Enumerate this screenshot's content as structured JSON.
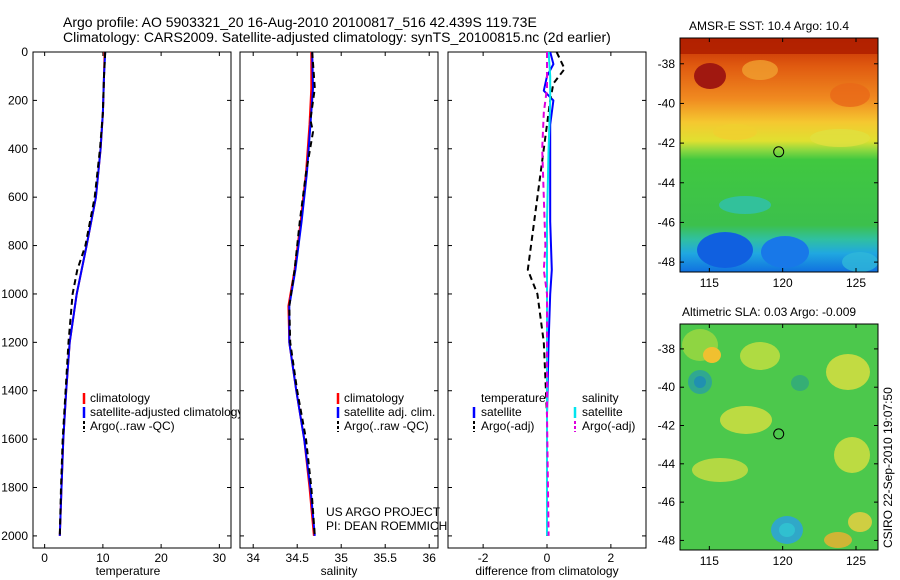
{
  "header": {
    "line1": "Argo profile: AO 5903321_20 16-Aug-2010 20100817_516 42.439S 119.73E",
    "line2": "Climatology: CARS2009. Satellite-adjusted climatology: synTS_20100815.nc (2d earlier)"
  },
  "colors": {
    "climatology": "#ff0000",
    "satellite": "#0000ff",
    "argo": "#000000",
    "salinity_satellite": "#00e5ee",
    "salinity_argo": "#dd00dd"
  },
  "chart_data": [
    {
      "id": "temperature",
      "type": "line",
      "xlabel": "temperature",
      "xlim": [
        -2,
        32
      ],
      "xticks": [
        0,
        10,
        20,
        30
      ],
      "ylim": [
        2050,
        0
      ],
      "yticks": [
        0,
        200,
        400,
        600,
        800,
        1000,
        1200,
        1400,
        1600,
        1800,
        2000
      ],
      "legend": [
        "climatology",
        "satellite-adjusted climatology",
        "Argo(..raw -QC)"
      ],
      "series": [
        {
          "name": "climatology",
          "color": "#ff0000",
          "dash": "",
          "points": [
            [
              10.3,
              0
            ],
            [
              10.2,
              100
            ],
            [
              10.0,
              250
            ],
            [
              9.6,
              400
            ],
            [
              8.8,
              600
            ],
            [
              7.2,
              800
            ],
            [
              5.5,
              1000
            ],
            [
              4.3,
              1200
            ],
            [
              3.7,
              1400
            ],
            [
              3.2,
              1600
            ],
            [
              2.9,
              1800
            ],
            [
              2.6,
              2000
            ]
          ]
        },
        {
          "name": "satellite-adjusted climatology",
          "color": "#0000ff",
          "dash": "",
          "points": [
            [
              10.4,
              0
            ],
            [
              10.2,
              100
            ],
            [
              10.0,
              250
            ],
            [
              9.6,
              400
            ],
            [
              8.8,
              600
            ],
            [
              7.2,
              800
            ],
            [
              5.5,
              1000
            ],
            [
              4.3,
              1200
            ],
            [
              3.7,
              1400
            ],
            [
              3.2,
              1600
            ],
            [
              2.9,
              1800
            ],
            [
              2.6,
              2000
            ]
          ]
        },
        {
          "name": "Argo(..raw -QC)",
          "color": "#000000",
          "dash": "6,4",
          "points": [
            [
              10.4,
              0
            ],
            [
              10.2,
              100
            ],
            [
              10.0,
              250
            ],
            [
              9.5,
              400
            ],
            [
              8.6,
              600
            ],
            [
              7.0,
              800
            ],
            [
              5.6,
              900
            ],
            [
              4.8,
              1000
            ],
            [
              4.1,
              1200
            ],
            [
              3.6,
              1400
            ],
            [
              3.1,
              1600
            ],
            [
              2.8,
              1800
            ],
            [
              2.6,
              2000
            ]
          ]
        }
      ]
    },
    {
      "id": "salinity",
      "type": "line",
      "xlabel": "salinity",
      "xlim": [
        33.85,
        36.1
      ],
      "xticks": [
        34,
        34.5,
        35,
        35.5,
        36
      ],
      "ylim": [
        2050,
        0
      ],
      "legend": [
        "climatology",
        "satellite adj. clim.",
        "Argo(..raw -QC)"
      ],
      "annotation": [
        "US ARGO PROJECT",
        "PI: DEAN ROEMMICH"
      ],
      "series": [
        {
          "name": "climatology",
          "color": "#ff0000",
          "dash": "",
          "points": [
            [
              34.66,
              0
            ],
            [
              34.66,
              150
            ],
            [
              34.64,
              300
            ],
            [
              34.6,
              500
            ],
            [
              34.54,
              700
            ],
            [
              34.47,
              900
            ],
            [
              34.4,
              1050
            ],
            [
              34.41,
              1200
            ],
            [
              34.49,
              1400
            ],
            [
              34.58,
              1600
            ],
            [
              34.64,
              1800
            ],
            [
              34.69,
              2000
            ]
          ]
        },
        {
          "name": "satellite adj. clim.",
          "color": "#0000ff",
          "dash": "",
          "points": [
            [
              34.67,
              0
            ],
            [
              34.68,
              150
            ],
            [
              34.65,
              300
            ],
            [
              34.61,
              500
            ],
            [
              34.55,
              700
            ],
            [
              34.48,
              900
            ],
            [
              34.41,
              1050
            ],
            [
              34.41,
              1200
            ],
            [
              34.49,
              1400
            ],
            [
              34.58,
              1600
            ],
            [
              34.65,
              1800
            ],
            [
              34.7,
              2000
            ]
          ]
        },
        {
          "name": "Argo(..raw -QC)",
          "color": "#000000",
          "dash": "6,4",
          "points": [
            [
              34.67,
              0
            ],
            [
              34.7,
              150
            ],
            [
              34.65,
              280
            ],
            [
              34.68,
              330
            ],
            [
              34.6,
              500
            ],
            [
              34.53,
              700
            ],
            [
              34.47,
              900
            ],
            [
              34.41,
              1050
            ],
            [
              34.42,
              1200
            ],
            [
              34.5,
              1400
            ],
            [
              34.6,
              1600
            ],
            [
              34.66,
              1800
            ],
            [
              34.7,
              2000
            ]
          ]
        }
      ]
    },
    {
      "id": "difference",
      "type": "line",
      "xlabel": "difference from climatology",
      "xlim": [
        -3.1,
        3.1
      ],
      "xticks": [
        -2,
        0,
        2
      ],
      "ylim": [
        2050,
        0
      ],
      "legend": {
        "temperature": {
          "title": "temperature",
          "items": [
            "satellite",
            "Argo(-adj)"
          ]
        },
        "salinity": {
          "title": "salinity",
          "items": [
            "satellite",
            "Argo(-adj)"
          ]
        }
      },
      "series": [
        {
          "name": "temperature satellite",
          "color": "#0000ff",
          "dash": "",
          "points": [
            [
              0.1,
              0
            ],
            [
              0.2,
              50
            ],
            [
              0.0,
              100
            ],
            [
              -0.1,
              160
            ],
            [
              0.2,
              200
            ],
            [
              0.1,
              300
            ],
            [
              0.1,
              500
            ],
            [
              0.1,
              700
            ],
            [
              0.15,
              900
            ],
            [
              0.1,
              1000
            ],
            [
              0.05,
              1200
            ],
            [
              0.0,
              1500
            ],
            [
              0.0,
              2000
            ]
          ]
        },
        {
          "name": "temperature Argo(-adj)",
          "color": "#000000",
          "dash": "6,4",
          "points": [
            [
              0.3,
              0
            ],
            [
              0.55,
              70
            ],
            [
              0.2,
              130
            ],
            [
              0.1,
              200
            ],
            [
              -0.1,
              400
            ],
            [
              -0.3,
              600
            ],
            [
              -0.5,
              800
            ],
            [
              -0.6,
              900
            ],
            [
              -0.3,
              1000
            ],
            [
              -0.1,
              1200
            ],
            [
              0.0,
              1500
            ],
            [
              0.0,
              2000
            ]
          ]
        },
        {
          "name": "salinity satellite",
          "color": "#00e5ee",
          "dash": "",
          "points": [
            [
              0.05,
              0
            ],
            [
              0.1,
              100
            ],
            [
              0.1,
              200
            ],
            [
              0.05,
              400
            ],
            [
              0.0,
              700
            ],
            [
              0.0,
              1000
            ],
            [
              0.0,
              1500
            ],
            [
              0.0,
              2000
            ]
          ]
        },
        {
          "name": "salinity Argo(-adj)",
          "color": "#dd00dd",
          "dash": "6,4",
          "points": [
            [
              0.0,
              0
            ],
            [
              0.0,
              150
            ],
            [
              -0.1,
              250
            ],
            [
              -0.15,
              400
            ],
            [
              -0.1,
              600
            ],
            [
              -0.05,
              800
            ],
            [
              -0.1,
              900
            ],
            [
              0.0,
              1000
            ],
            [
              0.0,
              1500
            ],
            [
              0.05,
              2000
            ]
          ]
        }
      ]
    },
    {
      "id": "sst_map",
      "type": "heatmap",
      "title": "AMSR-E SST: 10.4 Argo: 10.4",
      "xlim": [
        113,
        126.5
      ],
      "ylim": [
        -48.5,
        -36.7
      ],
      "xticks": [
        115,
        120,
        125
      ],
      "yticks": [
        -38,
        -40,
        -42,
        -44,
        -46,
        -48
      ],
      "marker": {
        "lon": 119.73,
        "lat": -42.44
      }
    },
    {
      "id": "sla_map",
      "type": "heatmap",
      "title": "Altimetric SLA: 0.03 Argo: -0.009",
      "xlim": [
        113,
        126.5
      ],
      "ylim": [
        -48.5,
        -36.7
      ],
      "xticks": [
        115,
        120,
        125
      ],
      "yticks": [
        -38,
        -40,
        -42,
        -44,
        -46,
        -48
      ],
      "marker": {
        "lon": 119.73,
        "lat": -42.44
      }
    }
  ],
  "footer": {
    "stamp": "CSIRO 22-Sep-2010 19:07:50"
  }
}
